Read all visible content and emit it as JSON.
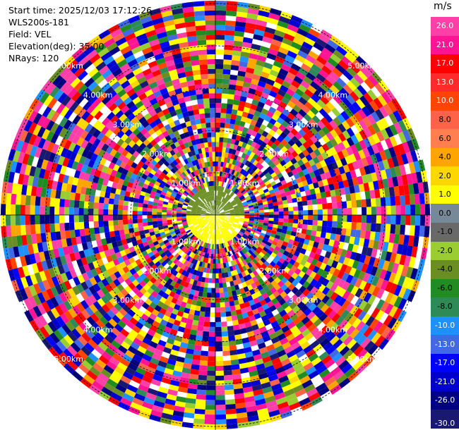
{
  "header": {
    "start_time": "Start time: 2025/12/03 17:12:26",
    "instrument": "WLS200s-181",
    "field": "Field: VEL",
    "elevation": "Elevation(deg): 35.00",
    "nrays": "NRays: 120"
  },
  "colorbar": {
    "unit": "m/s",
    "ticks": [
      "26.0",
      "21.0",
      "17.0",
      "13.0",
      "10.0",
      "8.0",
      "6.0",
      "4.0",
      "2.0",
      "1.0",
      "0.0",
      "-1.0",
      "-2.0",
      "-4.0",
      "-6.0",
      "-8.0",
      "-10.0",
      "-13.0",
      "-17.0",
      "-21.0",
      "-26.0",
      "-30.0"
    ],
    "colors": [
      "#ff3fa8",
      "#ff1493",
      "#ff0000",
      "#ff2a2a",
      "#ff4500",
      "#ff6347",
      "#ff7f50",
      "#ffa500",
      "#ffd700",
      "#ffff00",
      "#778899",
      "#696969",
      "#9acd32",
      "#6b8e23",
      "#228b22",
      "#2e8b57",
      "#1e90ff",
      "#4169e1",
      "#0000ff",
      "#0000cd",
      "#000080",
      "#191970"
    ],
    "light_label_indices": [
      0,
      1,
      2,
      3,
      4,
      16,
      17,
      18,
      19,
      20,
      21
    ]
  },
  "chart_data": {
    "type": "heatmap",
    "projection": "polar-ppi",
    "field": "VEL",
    "unit": "m/s",
    "nrays": 120,
    "range_rings_km": [
      "1.00km",
      "2.00km",
      "3.00km",
      "4.00km",
      "5.00km"
    ],
    "value_range": [
      -30,
      26
    ],
    "near_field": {
      "north_color": "#6b8e23",
      "south_color": "#ffff00"
    }
  }
}
